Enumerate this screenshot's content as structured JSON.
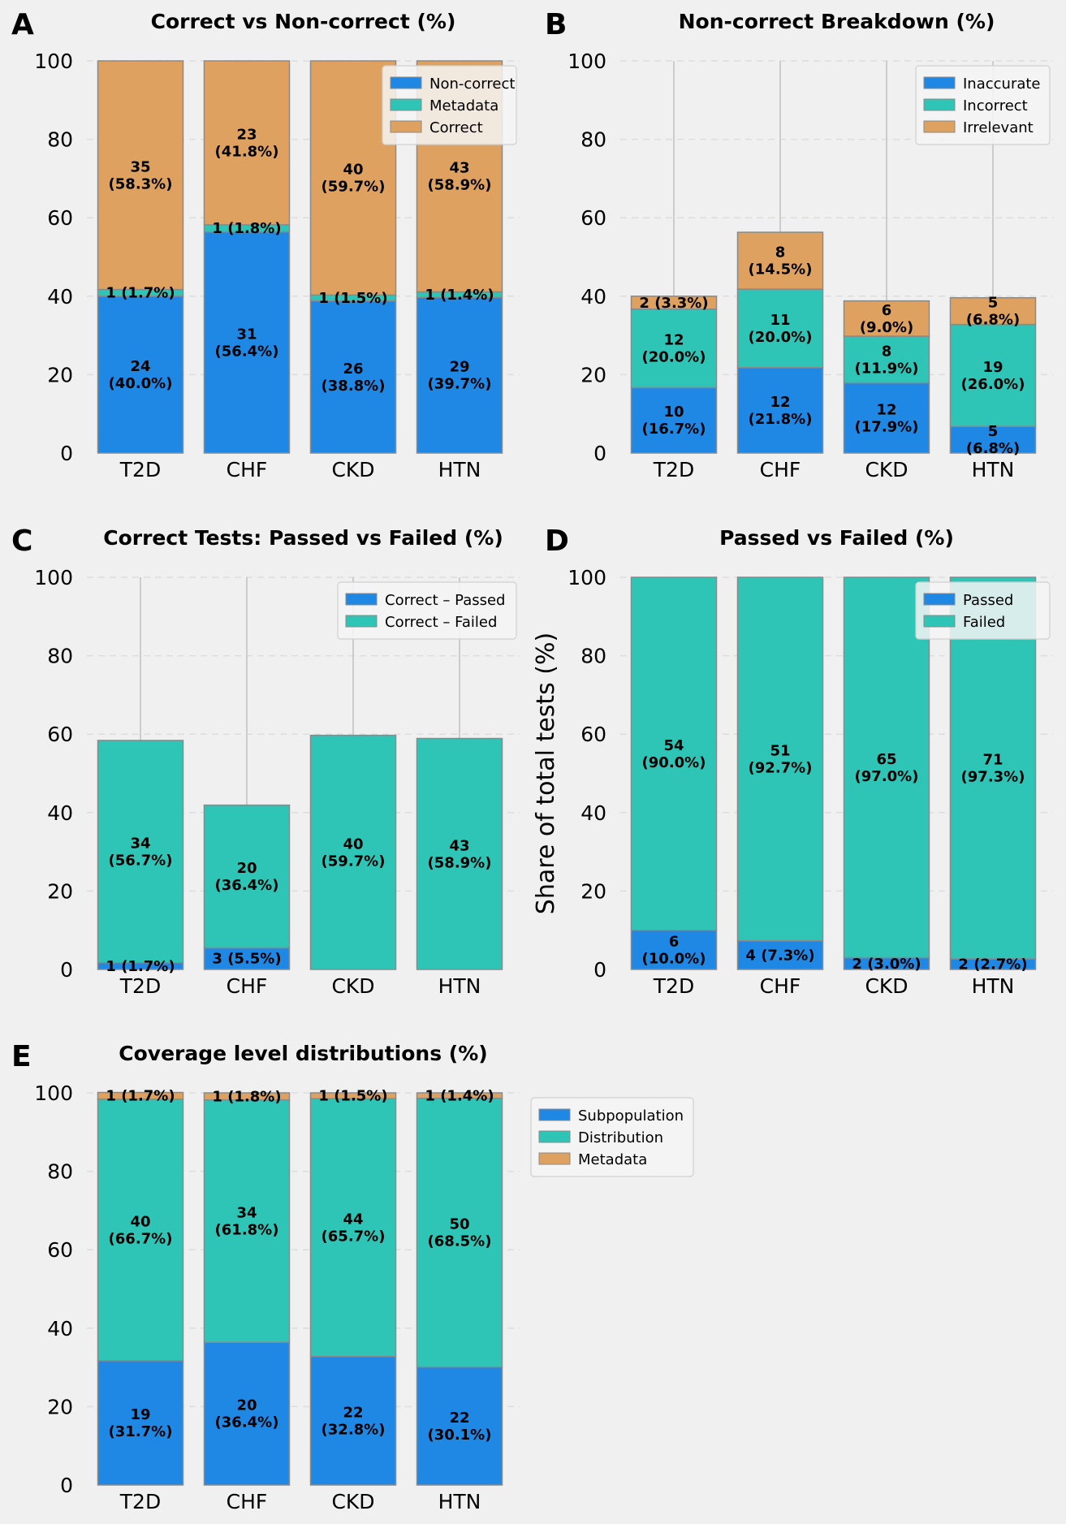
{
  "colors": {
    "blue": "#1f88e5",
    "teal": "#2ec4b6",
    "orange": "#dea15f",
    "background": "#f0f0f0",
    "grid": "#dddddd",
    "whisker": "#cccccc",
    "edge": "#8a8a8a",
    "text": "#000000"
  },
  "chart_data": [
    {
      "panel_letter": "A",
      "type": "bar",
      "stacked": true,
      "title": "Correct vs Non-correct (%)",
      "xlabel": "",
      "ylabel": "",
      "ylim": [
        0,
        100
      ],
      "yticks": [
        "0",
        "20",
        "40",
        "60",
        "80",
        "100"
      ],
      "grid": true,
      "legend_position": "top-right",
      "categories": [
        "T2D",
        "CHF",
        "CKD",
        "HTN"
      ],
      "whisker_top": null,
      "series": [
        {
          "name": "Non-correct",
          "color": "blue",
          "values": [
            40.0,
            56.4,
            38.8,
            39.7
          ],
          "labels": [
            "24\n(40.0%)",
            "31\n(56.4%)",
            "26\n(38.8%)",
            "29\n(39.7%)"
          ]
        },
        {
          "name": "Metadata",
          "color": "teal",
          "values": [
            1.7,
            1.8,
            1.5,
            1.4
          ],
          "labels": [
            "1 (1.7%)",
            "1 (1.8%)",
            "1 (1.5%)",
            "1 (1.4%)"
          ]
        },
        {
          "name": "Correct",
          "color": "orange",
          "values": [
            58.3,
            41.8,
            59.7,
            58.9
          ],
          "labels": [
            "35\n(58.3%)",
            "23\n(41.8%)",
            "40\n(59.7%)",
            "43\n(58.9%)"
          ]
        }
      ]
    },
    {
      "panel_letter": "B",
      "type": "bar",
      "stacked": true,
      "title": "Non-correct Breakdown (%)",
      "xlabel": "",
      "ylabel": "",
      "ylim": [
        0,
        100
      ],
      "yticks": [
        "0",
        "20",
        "40",
        "60",
        "80",
        "100"
      ],
      "grid": true,
      "legend_position": "top-right",
      "categories": [
        "T2D",
        "CHF",
        "CKD",
        "HTN"
      ],
      "whisker_top": 100,
      "series": [
        {
          "name": "Inaccurate",
          "color": "blue",
          "values": [
            16.7,
            21.8,
            17.9,
            6.8
          ],
          "labels": [
            "10\n(16.7%)",
            "12\n(21.8%)",
            "12\n(17.9%)",
            "5\n(6.8%)"
          ]
        },
        {
          "name": "Incorrect",
          "color": "teal",
          "values": [
            20.0,
            20.0,
            11.9,
            26.0
          ],
          "labels": [
            "12\n(20.0%)",
            "11\n(20.0%)",
            "8\n(11.9%)",
            "19\n(26.0%)"
          ]
        },
        {
          "name": "Irrelevant",
          "color": "orange",
          "values": [
            3.3,
            14.5,
            9.0,
            6.8
          ],
          "labels": [
            "2 (3.3%)",
            "8\n(14.5%)",
            "6\n(9.0%)",
            "5\n(6.8%)"
          ]
        }
      ]
    },
    {
      "panel_letter": "C",
      "type": "bar",
      "stacked": true,
      "title": "Correct Tests: Passed vs Failed (%)",
      "xlabel": "",
      "ylabel": "",
      "ylim": [
        0,
        100
      ],
      "yticks": [
        "0",
        "20",
        "40",
        "60",
        "80",
        "100"
      ],
      "grid": true,
      "legend_position": "top-right",
      "categories": [
        "T2D",
        "CHF",
        "CKD",
        "HTN"
      ],
      "whisker_top": 100,
      "series": [
        {
          "name": "Correct – Passed",
          "color": "blue",
          "values": [
            1.7,
            5.5,
            0,
            0
          ],
          "labels": [
            "1 (1.7%)",
            "3 (5.5%)",
            "",
            ""
          ]
        },
        {
          "name": "Correct – Failed",
          "color": "teal",
          "values": [
            56.7,
            36.4,
            59.7,
            58.9
          ],
          "labels": [
            "34\n(56.7%)",
            "20\n(36.4%)",
            "40\n(59.7%)",
            "43\n(58.9%)"
          ]
        }
      ]
    },
    {
      "panel_letter": "D",
      "type": "bar",
      "stacked": true,
      "title": "Passed vs Failed (%)",
      "xlabel": "",
      "ylabel": "Share of total tests (%)",
      "ylim": [
        0,
        100
      ],
      "yticks": [
        "0",
        "20",
        "40",
        "60",
        "80",
        "100"
      ],
      "grid": true,
      "legend_position": "top-right",
      "categories": [
        "T2D",
        "CHF",
        "CKD",
        "HTN"
      ],
      "whisker_top": null,
      "series": [
        {
          "name": "Passed",
          "color": "blue",
          "values": [
            10.0,
            7.3,
            3.0,
            2.7
          ],
          "labels": [
            "6\n(10.0%)",
            "4 (7.3%)",
            "2 (3.0%)",
            "2 (2.7%)"
          ]
        },
        {
          "name": "Failed",
          "color": "teal",
          "values": [
            90.0,
            92.7,
            97.0,
            97.3
          ],
          "labels": [
            "54\n(90.0%)",
            "51\n(92.7%)",
            "65\n(97.0%)",
            "71\n(97.3%)"
          ]
        }
      ]
    },
    {
      "panel_letter": "E",
      "type": "bar",
      "stacked": true,
      "title": "Coverage level distributions (%)",
      "xlabel": "",
      "ylabel": "",
      "ylim": [
        0,
        100
      ],
      "yticks": [
        "0",
        "20",
        "40",
        "60",
        "80",
        "100"
      ],
      "grid": true,
      "legend_position": "outside-right",
      "categories": [
        "T2D",
        "CHF",
        "CKD",
        "HTN"
      ],
      "whisker_top": null,
      "series": [
        {
          "name": "Subpopulation",
          "color": "blue",
          "values": [
            31.7,
            36.4,
            32.8,
            30.1
          ],
          "labels": [
            "19\n(31.7%)",
            "20\n(36.4%)",
            "22\n(32.8%)",
            "22\n(30.1%)"
          ]
        },
        {
          "name": "Distribution",
          "color": "teal",
          "values": [
            66.7,
            61.8,
            65.7,
            68.5
          ],
          "labels": [
            "40\n(66.7%)",
            "34\n(61.8%)",
            "44\n(65.7%)",
            "50\n(68.5%)"
          ]
        },
        {
          "name": "Metadata",
          "color": "orange",
          "values": [
            1.7,
            1.8,
            1.5,
            1.4
          ],
          "labels": [
            "1 (1.7%)",
            "1 (1.8%)",
            "1 (1.5%)",
            "1 (1.4%)"
          ]
        }
      ]
    }
  ]
}
